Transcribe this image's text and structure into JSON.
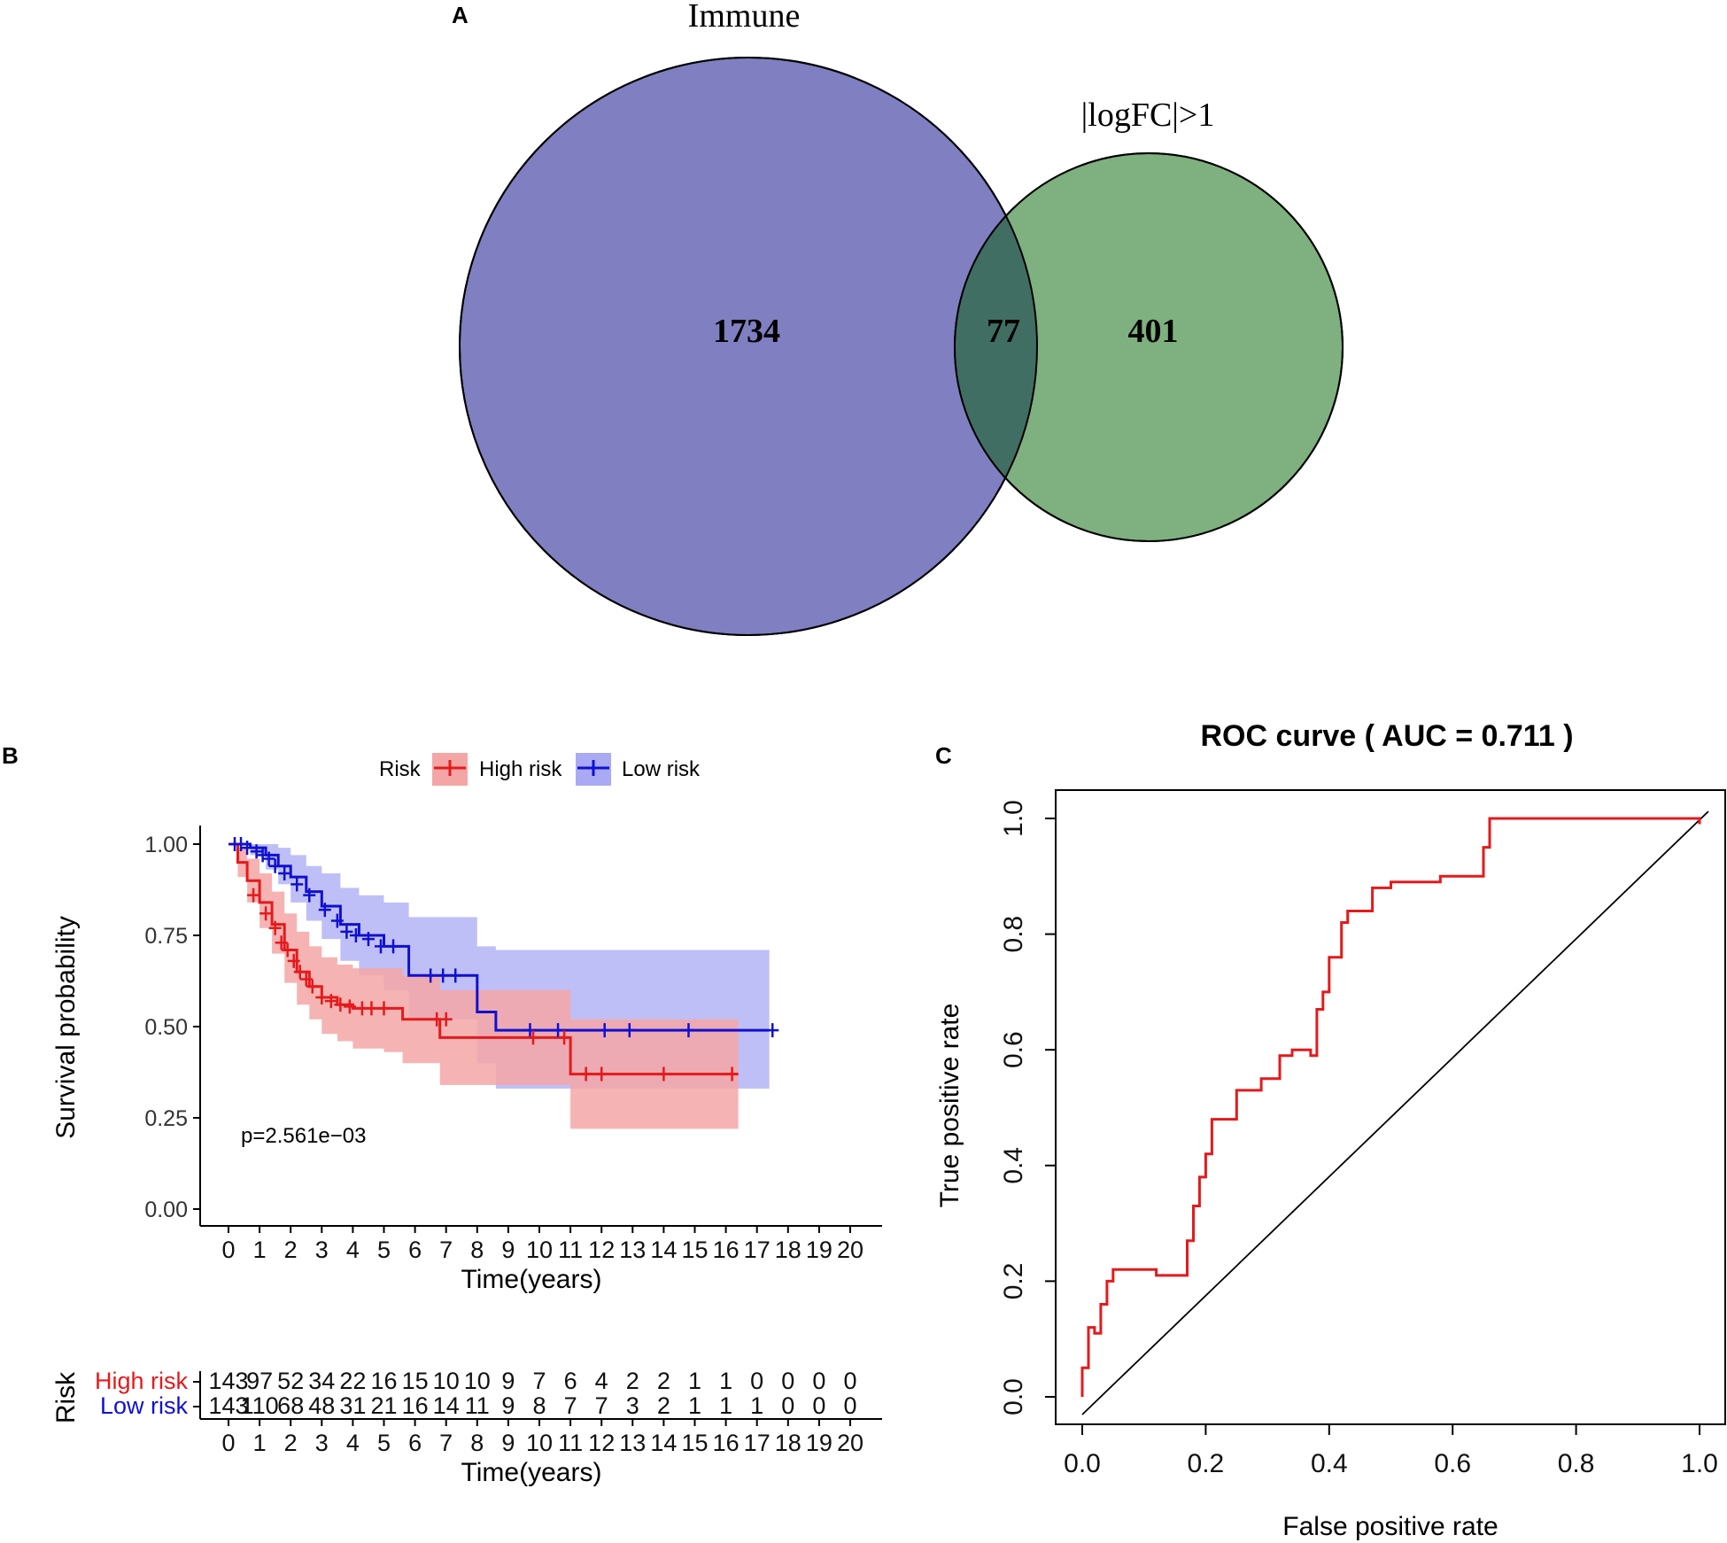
{
  "panel_labels": {
    "a": "A",
    "b": "B",
    "c": "C"
  },
  "colors": {
    "immune_fill": "#7f7fc1",
    "logfc_fill": "#7fb07f",
    "overlap_fill": "#416e62",
    "high_risk": "#e41a1c",
    "high_risk_band": "#f4a6a6",
    "low_risk": "#1010d0",
    "low_risk_band": "#a9a9f4",
    "roc_curve": "#e41a1c"
  },
  "chart_data": [
    {
      "type": "venn",
      "sets": [
        {
          "name": "Immune",
          "only": 1734
        },
        {
          "name": "|logFC|>1",
          "only": 401
        }
      ],
      "intersection": 77
    },
    {
      "type": "line",
      "subtype": "kaplan-meier",
      "legend_title": "Risk",
      "legend": [
        "High risk",
        "Low risk"
      ],
      "xlabel": "Time(years)",
      "ylabel": "Survival probability",
      "xlim": [
        0,
        20
      ],
      "ylim": [
        0,
        1
      ],
      "x_ticks": [
        0,
        1,
        2,
        3,
        4,
        5,
        6,
        7,
        8,
        9,
        10,
        11,
        12,
        13,
        14,
        15,
        16,
        17,
        18,
        19,
        20
      ],
      "y_ticks": [
        0,
        0.25,
        0.5,
        0.75,
        1.0
      ],
      "y_tick_labels": [
        "0.00",
        "0.25",
        "0.50",
        "0.75",
        "1.00"
      ],
      "pvalue": "p=2.561e−03",
      "series": [
        {
          "name": "High risk",
          "x": [
            0,
            0.3,
            0.6,
            1.0,
            1.4,
            1.8,
            2.2,
            2.6,
            3.0,
            3.5,
            4.0,
            5.0,
            5.6,
            6.8,
            7.5,
            9.5,
            10.2,
            11.0,
            16.4
          ],
          "y": [
            1.0,
            0.95,
            0.9,
            0.84,
            0.78,
            0.71,
            0.65,
            0.61,
            0.58,
            0.56,
            0.55,
            0.55,
            0.52,
            0.47,
            0.47,
            0.47,
            0.47,
            0.37,
            0.37
          ],
          "upper": [
            1.0,
            0.99,
            0.96,
            0.92,
            0.87,
            0.81,
            0.76,
            0.72,
            0.69,
            0.67,
            0.66,
            0.66,
            0.64,
            0.6,
            0.6,
            0.6,
            0.6,
            0.52,
            0.52
          ],
          "lower": [
            1.0,
            0.91,
            0.84,
            0.77,
            0.7,
            0.62,
            0.56,
            0.52,
            0.48,
            0.46,
            0.44,
            0.43,
            0.4,
            0.34,
            0.34,
            0.34,
            0.34,
            0.22,
            0.22
          ],
          "censor_x": [
            0.8,
            1.2,
            1.5,
            1.7,
            1.9,
            2.1,
            2.3,
            2.5,
            2.7,
            3.0,
            3.3,
            3.6,
            3.9,
            4.3,
            4.6,
            5.0,
            6.7,
            7.0,
            9.8,
            10.8,
            11.5,
            12.0,
            14.0,
            16.2
          ],
          "censor_y": [
            0.86,
            0.81,
            0.77,
            0.73,
            0.71,
            0.68,
            0.65,
            0.63,
            0.61,
            0.58,
            0.57,
            0.56,
            0.555,
            0.55,
            0.55,
            0.55,
            0.52,
            0.52,
            0.47,
            0.47,
            0.37,
            0.37,
            0.37,
            0.37
          ]
        },
        {
          "name": "Low risk",
          "x": [
            0,
            0.7,
            1.2,
            1.6,
            2.0,
            2.5,
            3.0,
            3.6,
            4.2,
            5.0,
            5.8,
            7.7,
            8.0,
            8.6,
            17.4
          ],
          "y": [
            1.0,
            0.99,
            0.97,
            0.94,
            0.91,
            0.87,
            0.83,
            0.78,
            0.75,
            0.72,
            0.64,
            0.64,
            0.54,
            0.49,
            0.49
          ],
          "upper": [
            1.0,
            1.0,
            1.0,
            0.99,
            0.97,
            0.94,
            0.92,
            0.88,
            0.86,
            0.84,
            0.8,
            0.8,
            0.72,
            0.71,
            0.71
          ],
          "lower": [
            1.0,
            0.97,
            0.93,
            0.89,
            0.84,
            0.79,
            0.74,
            0.68,
            0.64,
            0.6,
            0.52,
            0.52,
            0.4,
            0.33,
            0.33
          ],
          "censor_x": [
            0.2,
            0.4,
            0.6,
            0.9,
            1.1,
            1.3,
            1.5,
            1.8,
            2.2,
            2.6,
            3.1,
            3.5,
            3.8,
            4.1,
            4.5,
            4.9,
            5.3,
            6.5,
            6.9,
            7.3,
            9.7,
            10.6,
            12.1,
            12.9,
            14.8,
            17.5
          ],
          "censor_y": [
            1.0,
            1.0,
            0.99,
            0.98,
            0.97,
            0.96,
            0.94,
            0.92,
            0.89,
            0.86,
            0.82,
            0.79,
            0.76,
            0.75,
            0.74,
            0.72,
            0.72,
            0.64,
            0.64,
            0.64,
            0.49,
            0.49,
            0.49,
            0.49,
            0.49,
            0.49
          ]
        }
      ]
    },
    {
      "type": "table",
      "title": "Risk",
      "row_labels": [
        "High risk",
        "Low risk"
      ],
      "columns": [
        0,
        1,
        2,
        3,
        4,
        5,
        6,
        7,
        8,
        9,
        10,
        11,
        12,
        13,
        14,
        15,
        16,
        17,
        18,
        19,
        20
      ],
      "rows": [
        [
          143,
          97,
          52,
          34,
          22,
          16,
          15,
          10,
          10,
          9,
          7,
          6,
          4,
          2,
          2,
          1,
          1,
          0,
          0,
          0,
          0
        ],
        [
          143,
          110,
          68,
          48,
          31,
          21,
          16,
          14,
          11,
          9,
          8,
          7,
          7,
          3,
          2,
          1,
          1,
          1,
          0,
          0,
          0
        ]
      ],
      "xlabel": "Time(years)",
      "x_tick_labels": [
        "0",
        "1",
        "2",
        "3",
        "4",
        "5",
        "6",
        "7",
        "8",
        "9",
        "10",
        "11",
        "12",
        "13",
        "14",
        "15",
        "16",
        "17",
        "18",
        "19",
        "20"
      ]
    },
    {
      "type": "line",
      "subtype": "roc",
      "title": "ROC curve ( AUC =  0.711 )",
      "xlabel": "False positive rate",
      "ylabel": "True positive rate",
      "xlim": [
        0,
        1
      ],
      "ylim": [
        0,
        1
      ],
      "x_ticks": [
        0,
        0.2,
        0.4,
        0.6,
        0.8,
        1.0
      ],
      "y_ticks": [
        0,
        0.2,
        0.4,
        0.6,
        0.8,
        1.0
      ],
      "tick_labels": [
        "0.0",
        "0.2",
        "0.4",
        "0.6",
        "0.8",
        "1.0"
      ],
      "x": [
        0.0,
        0.0,
        0.01,
        0.01,
        0.02,
        0.03,
        0.03,
        0.04,
        0.05,
        0.06,
        0.07,
        0.12,
        0.16,
        0.17,
        0.18,
        0.19,
        0.2,
        0.21,
        0.24,
        0.25,
        0.26,
        0.29,
        0.32,
        0.33,
        0.34,
        0.37,
        0.38,
        0.39,
        0.4,
        0.42,
        0.43,
        0.47,
        0.5,
        0.55,
        0.58,
        0.62,
        0.65,
        0.66,
        0.66,
        0.75,
        0.85,
        0.95,
        1.0
      ],
      "y": [
        0.0,
        0.05,
        0.08,
        0.12,
        0.11,
        0.13,
        0.16,
        0.2,
        0.22,
        0.22,
        0.22,
        0.21,
        0.21,
        0.27,
        0.33,
        0.38,
        0.42,
        0.48,
        0.48,
        0.53,
        0.53,
        0.55,
        0.59,
        0.59,
        0.6,
        0.59,
        0.67,
        0.7,
        0.76,
        0.82,
        0.84,
        0.88,
        0.89,
        0.89,
        0.9,
        0.9,
        0.95,
        0.95,
        1.0,
        1.0,
        1.0,
        1.0,
        0.99
      ],
      "diagonal": [
        [
          0,
          0
        ],
        [
          1,
          1
        ]
      ]
    }
  ]
}
